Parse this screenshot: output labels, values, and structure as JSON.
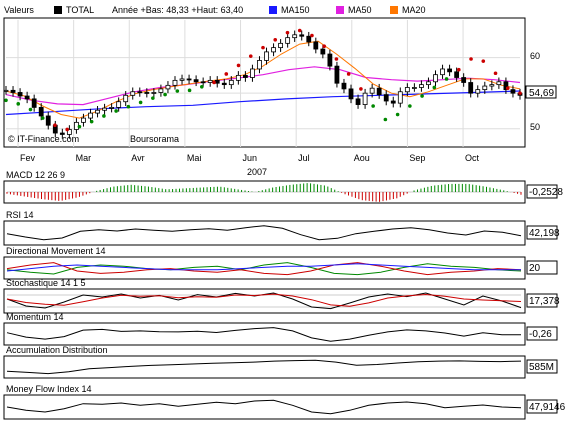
{
  "header": {
    "values_label": "Valeurs",
    "ticker": "TOTAL",
    "range_text": "Année +Bas: 48,33 +Haut: 63,40",
    "ma150_label": "MA150",
    "ma50_label": "MA50",
    "ma20_label": "MA20"
  },
  "colors": {
    "ma150": "#1a1aff",
    "ma50": "#e020e0",
    "ma20": "#ff7700",
    "sar_up": "#008800",
    "sar_down": "#cc0000",
    "macd_pos": "#008800",
    "macd_neg": "#cc0000",
    "ticker_box": "#000000"
  },
  "credits": {
    "left": "© IT-Finance.com",
    "right": "Boursorama"
  },
  "indicators": {
    "macd": {
      "label": "MACD 12 26 9",
      "value": "-0,2528"
    },
    "rsi": {
      "label": "RSI 14",
      "value": "42,198"
    },
    "dm": {
      "label": "Directional Movement 14",
      "value": "20"
    },
    "stoch": {
      "label": "Stochastique 14 1 5",
      "value": "17,378"
    },
    "momentum": {
      "label": "Momentum 14",
      "value": "-0,26"
    },
    "ad": {
      "label": "Accumulation Distribution",
      "value": "585M"
    },
    "mfi": {
      "label": "Money Flow Index 14",
      "value": "47,9146"
    }
  },
  "chart_data": {
    "type": "line",
    "title": "TOTAL",
    "xlabel": "2007",
    "months": [
      "Fev",
      "Mar",
      "Avr",
      "Mai",
      "Jun",
      "Jul",
      "Aou",
      "Sep",
      "Oct"
    ],
    "y_ticks": [
      50,
      60
    ],
    "ylim": [
      48,
      65
    ],
    "last_price": "54,69",
    "price_series": {
      "name": "TOTAL",
      "values": [
        55.4,
        55.1,
        54.6,
        54.2,
        53.0,
        51.8,
        50.5,
        49.4,
        49.2,
        49.9,
        50.9,
        51.5,
        52.2,
        52.6,
        52.9,
        53.0,
        53.8,
        54.7,
        55.2,
        55.1,
        55.0,
        55.1,
        55.6,
        56.1,
        56.8,
        57.0,
        56.9,
        56.6,
        56.5,
        56.8,
        56.4,
        56.2,
        56.8,
        57.5,
        57.2,
        58.4,
        59.6,
        60.8,
        61.4,
        62.0,
        62.8,
        63.2,
        63.0,
        62.2,
        61.2,
        60.5,
        58.8,
        56.4,
        55.6,
        54.2,
        53.4,
        55.0,
        55.7,
        54.8,
        53.9,
        53.6,
        55.2,
        55.8,
        55.8,
        56.2,
        56.6,
        57.6,
        58.4,
        58.0,
        57.2,
        56.5,
        55.0,
        55.5,
        56.0,
        56.2,
        56.6,
        55.5,
        55.0,
        54.7
      ]
    },
    "ma150": {
      "name": "MA150",
      "values": [
        52.0,
        52.4,
        52.8,
        53.1,
        53.3,
        53.8,
        54.2,
        54.5,
        54.7,
        54.9,
        55.1,
        55.3
      ]
    },
    "ma50": {
      "name": "MA50",
      "values": [
        54.8,
        54.0,
        53.5,
        53.4,
        54.3,
        55.2,
        55.8,
        56.2,
        56.7,
        57.1,
        57.6,
        58.3,
        58.7,
        58.3,
        57.2,
        56.9,
        56.7,
        56.9,
        57.1,
        56.9,
        56.5
      ]
    },
    "ma20": {
      "name": "MA20",
      "values": [
        55.3,
        54.6,
        53.2,
        52.0,
        51.5,
        52.5,
        53.8,
        54.9,
        55.5,
        55.9,
        56.3,
        56.7,
        57.0,
        57.6,
        58.8,
        60.5,
        61.9,
        62.3,
        60.5,
        58.5,
        56.3,
        55.0,
        54.5,
        55.2,
        56.1,
        57.0,
        57.0,
        56.1,
        55.6
      ]
    },
    "sar": {
      "values": [
        54.0,
        53.5,
        52.7,
        51.5,
        50.5,
        49.9,
        50.3,
        51.0,
        51.8,
        52.5,
        53.1,
        53.7,
        54.3,
        54.8,
        55.3,
        55.4,
        55.9,
        56.5,
        57.7,
        58.9,
        60.2,
        61.4,
        62.5,
        63.5,
        63.8,
        63.1,
        61.6,
        59.8,
        57.7,
        55.6,
        53.2,
        51.3,
        52.0,
        53.2,
        54.6,
        55.8,
        57.0,
        58.3,
        59.8,
        59.5,
        57.8,
        55.7,
        55.0
      ]
    },
    "volume_proxy": {
      "macd": [
        -0.2,
        -0.5,
        -0.8,
        -1.0,
        -0.6,
        0.1,
        0.6,
        0.8,
        0.6,
        0.3,
        0.4,
        0.5,
        0.6,
        0.3,
        0.0,
        0.5,
        0.8,
        1.0,
        0.7,
        -0.2,
        -0.9,
        -1.1,
        -0.7,
        0.2,
        0.7,
        0.9,
        0.9,
        0.6,
        0.2,
        -0.3
      ],
      "rsi": [
        48,
        38,
        30,
        35,
        55,
        60,
        56,
        62,
        58,
        55,
        60,
        63,
        58,
        66,
        72,
        64,
        45,
        30,
        34,
        48,
        55,
        62,
        66,
        60,
        50,
        44,
        56,
        52,
        42
      ],
      "dm_plus": [
        22,
        18,
        15,
        26,
        30,
        28,
        24,
        22,
        26,
        28,
        22,
        30,
        34,
        26,
        16,
        14,
        18,
        26,
        32,
        28,
        26,
        22,
        20
      ],
      "dm_minus": [
        24,
        30,
        34,
        20,
        16,
        18,
        22,
        24,
        20,
        18,
        22,
        16,
        14,
        20,
        30,
        34,
        28,
        20,
        14,
        18,
        20,
        24,
        22
      ],
      "adx": [
        20,
        24,
        28,
        30,
        28,
        26,
        24,
        22,
        22,
        22,
        24,
        26,
        28,
        28,
        30,
        32,
        30,
        28,
        26,
        24,
        22,
        22,
        22
      ],
      "stoch": [
        60,
        25,
        15,
        45,
        80,
        70,
        85,
        65,
        78,
        55,
        82,
        70,
        88,
        75,
        90,
        60,
        20,
        12,
        40,
        70,
        85,
        72,
        90,
        60,
        30,
        75,
        50,
        17
      ],
      "momentum": [
        0.5,
        -1.2,
        -2.0,
        -1.0,
        1.5,
        1.8,
        1.0,
        1.2,
        0.9,
        0.8,
        1.1,
        0.6,
        1.4,
        2.1,
        2.5,
        1.2,
        -1.5,
        -2.8,
        -2.0,
        -0.5,
        0.8,
        1.6,
        1.2,
        0.4,
        -0.8,
        0.5,
        -0.3,
        -0.26
      ],
      "ad": [
        -3.0,
        -3.5,
        -4.0,
        -3.2,
        -2.0,
        -1.5,
        -1.0,
        -0.6,
        -0.3,
        0.0,
        0.3,
        0.5,
        0.8,
        1.2,
        1.4,
        1.6,
        0.8,
        -0.5,
        -0.2,
        0.4,
        0.9,
        1.2,
        1.3,
        1.1,
        1.0,
        1.2
      ],
      "mfi": [
        50,
        40,
        35,
        45,
        60,
        58,
        62,
        55,
        60,
        52,
        58,
        64,
        60,
        68,
        70,
        55,
        35,
        30,
        40,
        55,
        62,
        65,
        60,
        48,
        52,
        56,
        50,
        48
      ]
    }
  }
}
